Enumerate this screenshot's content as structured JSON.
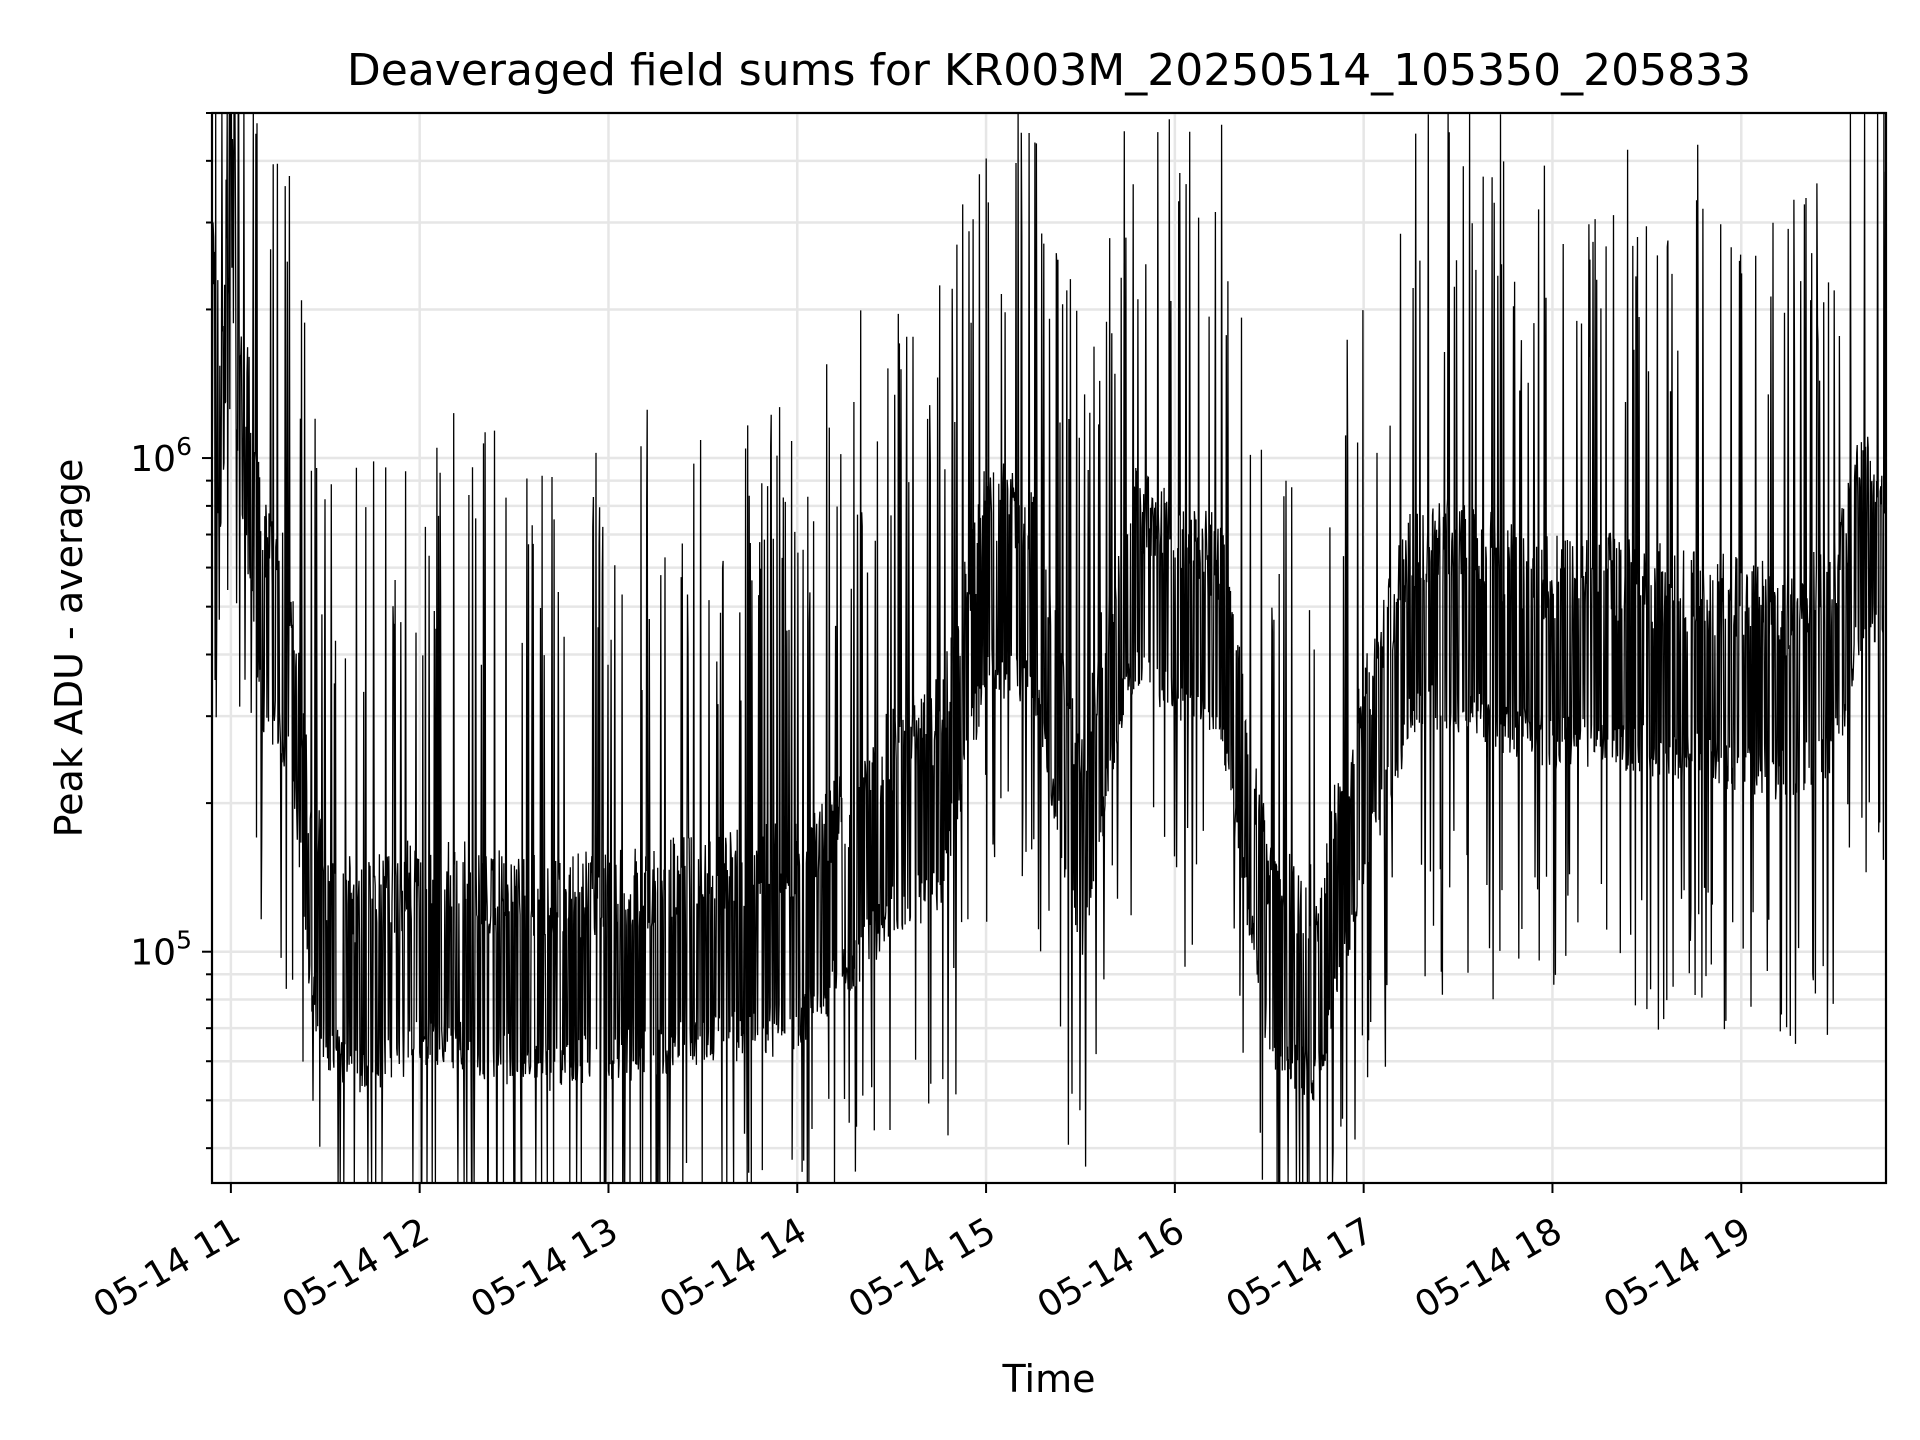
{
  "chart_data": {
    "type": "line",
    "title": "Deaveraged field sums for KR003M_20250514_105350_205833",
    "xlabel": "Time",
    "ylabel": "Peak ADU - average",
    "y_scale": "log",
    "grid": true,
    "line_color": "#000000",
    "grid_color": "#e6e6e6",
    "xlim": [
      "2025-05-14T10:54",
      "2025-05-14T19:46"
    ],
    "ylim": [
      34000,
      5000000
    ],
    "x_ticks": [
      "05-14 11",
      "05-14 12",
      "05-14 13",
      "05-14 14",
      "05-14 15",
      "05-14 16",
      "05-14 17",
      "05-14 18",
      "05-14 19"
    ],
    "y_ticks": [
      {
        "value": 100000,
        "base": "10",
        "exp": "5"
      },
      {
        "value": 1000000,
        "base": "10",
        "exp": "6"
      }
    ],
    "series": [
      {
        "x": [
          "2025-05-14T10:54",
          "2025-05-14T10:57",
          "2025-05-14T11:00",
          "2025-05-14T11:03",
          "2025-05-14T11:06",
          "2025-05-14T11:10",
          "2025-05-14T11:15",
          "2025-05-14T11:20",
          "2025-05-14T11:25",
          "2025-05-14T11:30",
          "2025-05-14T11:40",
          "2025-05-14T11:50",
          "2025-05-14T12:00",
          "2025-05-14T12:15",
          "2025-05-14T12:30",
          "2025-05-14T12:45",
          "2025-05-14T13:00",
          "2025-05-14T13:15",
          "2025-05-14T13:30",
          "2025-05-14T13:45",
          "2025-05-14T14:00",
          "2025-05-14T14:15",
          "2025-05-14T14:30",
          "2025-05-14T14:45",
          "2025-05-14T15:00",
          "2025-05-14T15:15",
          "2025-05-14T15:30",
          "2025-05-14T15:45",
          "2025-05-14T16:00",
          "2025-05-14T16:15",
          "2025-05-14T16:30",
          "2025-05-14T16:45",
          "2025-05-14T17:00",
          "2025-05-14T17:15",
          "2025-05-14T17:30",
          "2025-05-14T17:45",
          "2025-05-14T18:00",
          "2025-05-14T18:15",
          "2025-05-14T18:30",
          "2025-05-14T18:45",
          "2025-05-14T19:00",
          "2025-05-14T19:15",
          "2025-05-14T19:30",
          "2025-05-14T19:40",
          "2025-05-14T19:46"
        ],
        "y": [
          1800000,
          900000,
          3800000,
          1000000,
          800000,
          420000,
          380000,
          300000,
          120000,
          85000,
          78000,
          80000,
          88000,
          85000,
          80000,
          78000,
          82000,
          84000,
          88000,
          90000,
          95000,
          120000,
          160000,
          180000,
          500000,
          480000,
          140000,
          500000,
          450000,
          380000,
          85000,
          75000,
          200000,
          400000,
          420000,
          380000,
          350000,
          360000,
          340000,
          330000,
          320000,
          300000,
          350000,
          700000,
          500000
        ]
      }
    ]
  }
}
